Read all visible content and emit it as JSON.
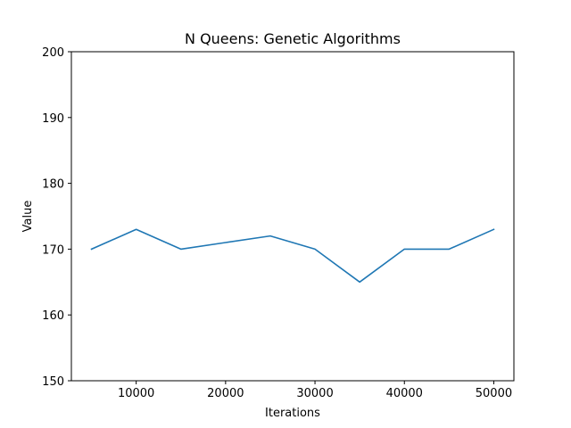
{
  "chart_data": {
    "type": "line",
    "title": "N Queens: Genetic Algorithms",
    "xlabel": "Iterations",
    "ylabel": "Value",
    "x": [
      5000,
      10000,
      15000,
      20000,
      25000,
      30000,
      35000,
      40000,
      45000,
      50000
    ],
    "series": [
      {
        "values": [
          170,
          173,
          170,
          171,
          172,
          170,
          165,
          170,
          170,
          173
        ],
        "color": "#1f77b4"
      }
    ],
    "xlim": [
      2750,
      52250
    ],
    "ylim": [
      150,
      200
    ],
    "xticks": [
      10000,
      20000,
      30000,
      40000,
      50000
    ],
    "yticks": [
      150,
      160,
      170,
      180,
      190,
      200
    ],
    "grid": false,
    "legend": "none"
  }
}
